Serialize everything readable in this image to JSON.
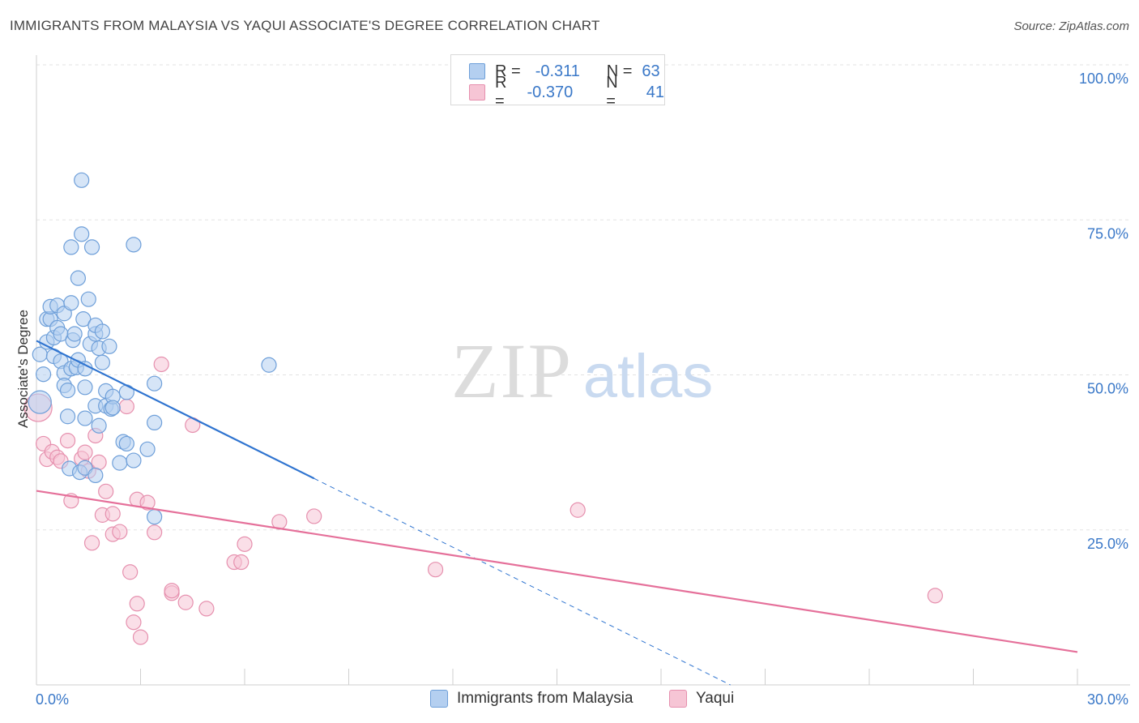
{
  "title": "IMMIGRANTS FROM MALAYSIA VS YAQUI ASSOCIATE'S DEGREE CORRELATION CHART",
  "source": "Source: ZipAtlas.com",
  "watermark": {
    "zip": "ZIP",
    "atlas": "atlas"
  },
  "legend": {
    "malaysia": {
      "r_label": "R =",
      "r_value": "-0.311",
      "n_label": "N =",
      "n_value": "63"
    },
    "yaqui": {
      "r_label": "R =",
      "r_value": "-0.370",
      "n_label": "N =",
      "n_value": "41"
    }
  },
  "colors": {
    "malaysia_fill": "#b4cff0",
    "malaysia_stroke": "#6e9fd9",
    "malaysia_line": "#2f74d0",
    "yaqui_fill": "#f6c5d5",
    "yaqui_stroke": "#e690ae",
    "yaqui_line": "#e5709a",
    "tick_label": "#3a78c8",
    "grid": "#e3e3e3"
  },
  "chart_data": {
    "type": "scatter",
    "title": "IMMIGRANTS FROM MALAYSIA VS YAQUI ASSOCIATE'S DEGREE CORRELATION CHART",
    "xlabel": "",
    "ylabel": "Associate's Degree",
    "xlim": [
      0,
      30
    ],
    "ylim": [
      0,
      100
    ],
    "x_ticks": [
      "0.0%",
      "30.0%"
    ],
    "y_ticks": [
      "25.0%",
      "50.0%",
      "75.0%",
      "100.0%"
    ],
    "grid": true,
    "legend_position": "top-center",
    "series": [
      {
        "name": "Immigrants from Malaysia",
        "points": [
          [
            0.1,
            45.6
          ],
          [
            0.2,
            50.1
          ],
          [
            0.1,
            53.3
          ],
          [
            0.3,
            55.3
          ],
          [
            0.3,
            59.0
          ],
          [
            0.4,
            59.0
          ],
          [
            0.4,
            61.0
          ],
          [
            0.5,
            53.0
          ],
          [
            0.5,
            56.0
          ],
          [
            0.6,
            61.2
          ],
          [
            0.6,
            57.6
          ],
          [
            0.7,
            56.6
          ],
          [
            0.7,
            52.2
          ],
          [
            0.8,
            50.3
          ],
          [
            0.8,
            48.3
          ],
          [
            0.8,
            59.9
          ],
          [
            0.9,
            43.3
          ],
          [
            0.9,
            47.5
          ],
          [
            0.95,
            34.9
          ],
          [
            1.0,
            70.6
          ],
          [
            1.0,
            61.6
          ],
          [
            1.0,
            51.0
          ],
          [
            1.05,
            55.6
          ],
          [
            1.1,
            56.6
          ],
          [
            1.15,
            51.2
          ],
          [
            1.2,
            65.6
          ],
          [
            1.2,
            52.4
          ],
          [
            1.25,
            34.3
          ],
          [
            1.3,
            81.4
          ],
          [
            1.3,
            72.7
          ],
          [
            1.35,
            59.0
          ],
          [
            1.4,
            48.0
          ],
          [
            1.4,
            43.0
          ],
          [
            1.4,
            35.0
          ],
          [
            1.4,
            51.0
          ],
          [
            1.5,
            62.2
          ],
          [
            1.55,
            55.0
          ],
          [
            1.6,
            70.6
          ],
          [
            1.7,
            56.6
          ],
          [
            1.7,
            33.8
          ],
          [
            1.7,
            45.0
          ],
          [
            1.7,
            58.0
          ],
          [
            1.8,
            41.8
          ],
          [
            1.8,
            54.3
          ],
          [
            1.9,
            57.0
          ],
          [
            1.9,
            52.0
          ],
          [
            2.0,
            47.4
          ],
          [
            2.0,
            45.0
          ],
          [
            2.1,
            54.6
          ],
          [
            2.15,
            44.5
          ],
          [
            2.2,
            46.5
          ],
          [
            2.2,
            44.7
          ],
          [
            2.4,
            35.8
          ],
          [
            2.5,
            39.2
          ],
          [
            2.6,
            38.9
          ],
          [
            2.6,
            47.2
          ],
          [
            2.8,
            36.2
          ],
          [
            2.8,
            71.0
          ],
          [
            3.2,
            38.0
          ],
          [
            3.4,
            48.6
          ],
          [
            3.4,
            42.3
          ],
          [
            3.4,
            27.1
          ],
          [
            6.7,
            51.6
          ]
        ]
      },
      {
        "name": "Yaqui",
        "points": [
          [
            0.05,
            44.7
          ],
          [
            0.2,
            38.9
          ],
          [
            0.3,
            36.4
          ],
          [
            0.45,
            37.6
          ],
          [
            0.6,
            36.7
          ],
          [
            0.7,
            36.1
          ],
          [
            0.9,
            39.4
          ],
          [
            1.0,
            29.7
          ],
          [
            1.3,
            36.5
          ],
          [
            1.4,
            37.5
          ],
          [
            1.5,
            34.5
          ],
          [
            1.6,
            22.9
          ],
          [
            1.7,
            40.2
          ],
          [
            1.8,
            35.9
          ],
          [
            1.9,
            27.4
          ],
          [
            2.0,
            31.2
          ],
          [
            2.2,
            27.6
          ],
          [
            2.2,
            24.3
          ],
          [
            2.4,
            24.7
          ],
          [
            2.6,
            44.9
          ],
          [
            2.7,
            18.2
          ],
          [
            2.8,
            10.1
          ],
          [
            2.9,
            13.1
          ],
          [
            2.9,
            29.9
          ],
          [
            3.0,
            7.7
          ],
          [
            3.2,
            29.4
          ],
          [
            3.4,
            24.6
          ],
          [
            3.6,
            51.7
          ],
          [
            3.9,
            14.8
          ],
          [
            3.9,
            15.2
          ],
          [
            4.3,
            13.3
          ],
          [
            4.5,
            41.9
          ],
          [
            4.9,
            12.3
          ],
          [
            5.7,
            19.8
          ],
          [
            5.9,
            19.8
          ],
          [
            6.0,
            22.7
          ],
          [
            7.0,
            26.3
          ],
          [
            8.0,
            27.2
          ],
          [
            11.5,
            18.6
          ],
          [
            15.6,
            28.2
          ],
          [
            25.9,
            14.4
          ]
        ]
      }
    ],
    "trendlines": [
      {
        "series": "Immigrants from Malaysia",
        "x": [
          0,
          8.0
        ],
        "y": [
          55.5,
          33.3
        ],
        "dashed_extension_to": [
          20.0,
          0
        ]
      },
      {
        "series": "Yaqui",
        "x": [
          0,
          30
        ],
        "y": [
          31.3,
          5.3
        ]
      }
    ]
  }
}
